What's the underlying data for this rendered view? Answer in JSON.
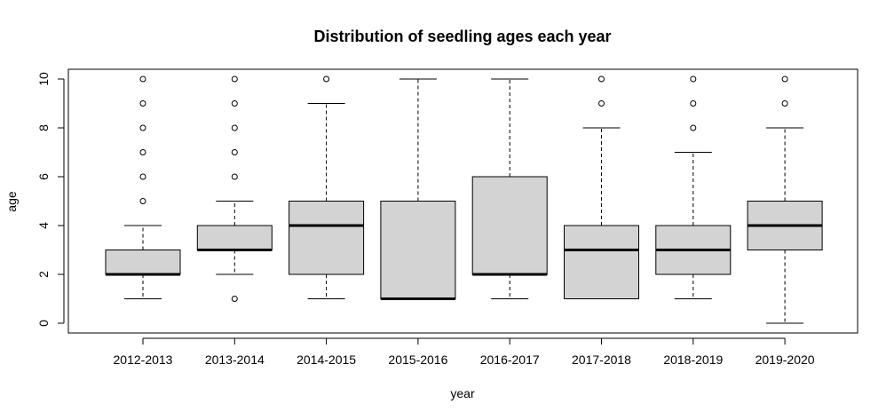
{
  "chart_data": {
    "type": "boxplot",
    "title": "Distribution of seedling ages each year",
    "xlabel": "year",
    "ylabel": "age",
    "ylim": [
      0,
      10
    ],
    "yticks": [
      0,
      2,
      4,
      6,
      8,
      10
    ],
    "grid": false,
    "colors": {
      "box_fill": "#d3d3d3",
      "stroke": "#000000"
    },
    "categories": [
      "2012-2013",
      "2013-2014",
      "2014-2015",
      "2015-2016",
      "2016-2017",
      "2017-2018",
      "2018-2019",
      "2019-2020"
    ],
    "boxes": [
      {
        "category": "2012-2013",
        "whisker_low": 1,
        "q1": 2,
        "median": 2,
        "q3": 3,
        "whisker_high": 4,
        "outliers": [
          5,
          6,
          7,
          8,
          9,
          10
        ]
      },
      {
        "category": "2013-2014",
        "whisker_low": 2,
        "q1": 3,
        "median": 3,
        "q3": 4,
        "whisker_high": 5,
        "outliers": [
          1,
          6,
          7,
          8,
          9,
          10
        ]
      },
      {
        "category": "2014-2015",
        "whisker_low": 1,
        "q1": 2,
        "median": 4,
        "q3": 5,
        "whisker_high": 9,
        "outliers": [
          10
        ]
      },
      {
        "category": "2015-2016",
        "whisker_low": 1,
        "q1": 1,
        "median": 1,
        "q3": 5,
        "whisker_high": 10,
        "outliers": []
      },
      {
        "category": "2016-2017",
        "whisker_low": 1,
        "q1": 2,
        "median": 2,
        "q3": 6,
        "whisker_high": 10,
        "outliers": []
      },
      {
        "category": "2017-2018",
        "whisker_low": 1,
        "q1": 1,
        "median": 3,
        "q3": 4,
        "whisker_high": 8,
        "outliers": [
          9,
          10
        ]
      },
      {
        "category": "2018-2019",
        "whisker_low": 1,
        "q1": 2,
        "median": 3,
        "q3": 4,
        "whisker_high": 7,
        "outliers": [
          8,
          9,
          10
        ]
      },
      {
        "category": "2019-2020",
        "whisker_low": 0,
        "q1": 3,
        "median": 4,
        "q3": 5,
        "whisker_high": 8,
        "outliers": [
          9,
          10
        ]
      }
    ]
  }
}
